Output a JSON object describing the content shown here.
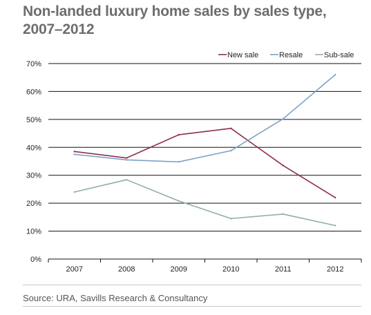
{
  "title": "Non-landed luxury home sales by sales type, 2007–2012",
  "source": "Source: URA, Savills Research & Consultancy",
  "chart_data": {
    "type": "line",
    "title": "Non-landed luxury home sales by sales type, 2007–2012",
    "xlabel": "",
    "ylabel": "",
    "categories": [
      "2007",
      "2008",
      "2009",
      "2010",
      "2011",
      "2012"
    ],
    "ylim": [
      0,
      70
    ],
    "yticks": [
      "0%",
      "10%",
      "20%",
      "30%",
      "40%",
      "50%",
      "60%",
      "70%"
    ],
    "grid": true,
    "legend_position": "top-right",
    "series": [
      {
        "name": "New sale",
        "color": "#8b2d4f",
        "values": [
          38.5,
          36.2,
          44.5,
          46.8,
          33.5,
          22.0
        ]
      },
      {
        "name": "Resale",
        "color": "#7ea1c4",
        "values": [
          37.5,
          35.5,
          34.8,
          38.8,
          50.2,
          66.0
        ]
      },
      {
        "name": "Sub-sale",
        "color": "#8fadad",
        "values": [
          24.0,
          28.4,
          20.8,
          14.5,
          16.1,
          12.0
        ]
      }
    ]
  }
}
